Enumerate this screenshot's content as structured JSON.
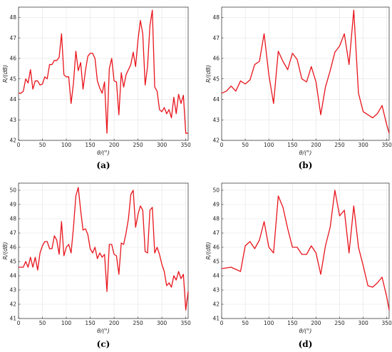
{
  "chart_data": [
    {
      "type": "line",
      "panel_label": "(a)",
      "xlabel": "θ/(°)",
      "ylabel": "R/(dB)",
      "xlim": [
        0,
        355
      ],
      "ylim": [
        42,
        48.5
      ],
      "xticks": [
        0,
        50,
        100,
        150,
        200,
        250,
        300,
        350
      ],
      "yticks": [
        42,
        43,
        44,
        45,
        46,
        47,
        48
      ],
      "grid": true,
      "color": "#e8141b",
      "x": [
        0,
        5,
        10,
        15,
        20,
        25,
        30,
        35,
        40,
        45,
        50,
        55,
        60,
        65,
        70,
        75,
        80,
        85,
        90,
        95,
        100,
        105,
        110,
        115,
        120,
        125,
        130,
        135,
        140,
        145,
        150,
        155,
        160,
        165,
        170,
        175,
        180,
        185,
        190,
        195,
        200,
        205,
        210,
        215,
        220,
        225,
        230,
        235,
        240,
        245,
        250,
        255,
        260,
        265,
        270,
        275,
        280,
        285,
        290,
        295,
        300,
        305,
        310,
        315,
        320,
        325,
        330,
        335,
        340,
        345,
        350,
        355
      ],
      "y": [
        44.3,
        44.3,
        44.4,
        45.0,
        44.8,
        45.45,
        44.5,
        44.9,
        44.9,
        44.7,
        44.75,
        45.1,
        45.0,
        45.7,
        45.7,
        45.9,
        45.9,
        46.05,
        47.2,
        45.2,
        45.1,
        45.1,
        43.8,
        44.8,
        46.35,
        45.4,
        45.8,
        44.5,
        45.4,
        46.1,
        46.25,
        46.25,
        46.0,
        44.9,
        44.55,
        44.3,
        44.85,
        42.35,
        45.5,
        46.0,
        44.9,
        44.85,
        43.25,
        45.3,
        44.6,
        45.2,
        45.45,
        45.7,
        46.3,
        45.6,
        46.9,
        47.85,
        47.2,
        44.7,
        45.6,
        47.6,
        48.35,
        44.6,
        44.4,
        43.5,
        43.4,
        43.6,
        43.3,
        43.5,
        43.1,
        44.1,
        43.3,
        44.25,
        43.8,
        44.2,
        42.35,
        42.35
      ]
    },
    {
      "type": "line",
      "panel_label": "(b)",
      "xlabel": "θ/(°)",
      "ylabel": "R/(dB)",
      "xlim": [
        0,
        355
      ],
      "ylim": [
        42,
        48.5
      ],
      "xticks": [
        0,
        50,
        100,
        150,
        200,
        250,
        300,
        350
      ],
      "yticks": [
        42,
        43,
        44,
        45,
        46,
        47,
        48
      ],
      "grid": true,
      "color": "#e8141b",
      "x": [
        0,
        10,
        20,
        30,
        40,
        50,
        60,
        70,
        80,
        90,
        100,
        110,
        120,
        130,
        140,
        150,
        160,
        170,
        180,
        190,
        200,
        210,
        220,
        230,
        240,
        250,
        260,
        270,
        280,
        290,
        300,
        310,
        320,
        330,
        340,
        350,
        355
      ],
      "y": [
        44.3,
        44.4,
        44.65,
        44.4,
        44.9,
        44.75,
        44.95,
        45.7,
        45.85,
        47.2,
        45.2,
        43.8,
        46.35,
        45.85,
        45.45,
        46.25,
        45.95,
        45.0,
        44.85,
        45.6,
        44.85,
        43.25,
        44.6,
        45.4,
        46.3,
        46.6,
        47.2,
        45.7,
        48.35,
        44.3,
        43.4,
        43.25,
        43.1,
        43.3,
        43.7,
        42.75,
        42.35
      ]
    },
    {
      "type": "line",
      "panel_label": "(c)",
      "xlabel": "θ/(°)",
      "ylabel": "R/(dB)",
      "xlim": [
        0,
        355
      ],
      "ylim": [
        41,
        50.5
      ],
      "xticks": [
        0,
        50,
        100,
        150,
        200,
        250,
        300,
        350
      ],
      "yticks": [
        41,
        42,
        43,
        44,
        45,
        46,
        47,
        48,
        49,
        50
      ],
      "grid": true,
      "color": "#e8141b",
      "x": [
        0,
        5,
        10,
        15,
        20,
        25,
        30,
        35,
        40,
        45,
        50,
        55,
        60,
        65,
        70,
        75,
        80,
        85,
        90,
        95,
        100,
        105,
        110,
        115,
        120,
        125,
        130,
        135,
        140,
        145,
        150,
        155,
        160,
        165,
        170,
        175,
        180,
        185,
        190,
        195,
        200,
        205,
        210,
        215,
        220,
        225,
        230,
        235,
        240,
        245,
        250,
        255,
        260,
        265,
        270,
        275,
        280,
        285,
        290,
        295,
        300,
        305,
        310,
        315,
        320,
        325,
        330,
        335,
        340,
        345,
        350,
        355
      ],
      "y": [
        44.6,
        44.6,
        44.6,
        45.0,
        44.6,
        45.3,
        44.6,
        45.3,
        44.4,
        45.6,
        46.1,
        46.4,
        46.4,
        45.9,
        45.9,
        46.8,
        46.5,
        45.5,
        47.8,
        45.4,
        46.0,
        46.2,
        45.6,
        47.4,
        49.6,
        50.2,
        48.6,
        47.2,
        47.3,
        46.9,
        45.9,
        45.6,
        46.0,
        45.2,
        45.6,
        45.3,
        45.5,
        42.9,
        46.2,
        46.2,
        45.5,
        45.4,
        44.1,
        46.3,
        46.2,
        47.0,
        48.0,
        49.7,
        50.0,
        47.4,
        48.3,
        48.9,
        48.6,
        45.7,
        45.6,
        48.6,
        48.8,
        45.6,
        46.0,
        45.5,
        44.8,
        44.3,
        43.3,
        43.5,
        43.2,
        44.0,
        43.7,
        44.3,
        43.8,
        44.1,
        41.6,
        42.9
      ]
    },
    {
      "type": "line",
      "panel_label": "(d)",
      "xlabel": "θ/(°)",
      "ylabel": "R/(dB)",
      "xlim": [
        0,
        355
      ],
      "ylim": [
        41,
        50.5
      ],
      "xticks": [
        0,
        50,
        100,
        150,
        200,
        250,
        300,
        350
      ],
      "yticks": [
        41,
        42,
        43,
        44,
        45,
        46,
        47,
        48,
        49,
        50
      ],
      "grid": true,
      "color": "#e8141b",
      "x": [
        0,
        20,
        40,
        50,
        60,
        70,
        80,
        90,
        100,
        110,
        120,
        130,
        140,
        150,
        160,
        170,
        180,
        190,
        200,
        210,
        220,
        230,
        240,
        250,
        260,
        270,
        280,
        290,
        300,
        310,
        320,
        330,
        340,
        350,
        355
      ],
      "y": [
        44.5,
        44.6,
        44.3,
        46.1,
        46.4,
        45.9,
        46.5,
        47.8,
        46.0,
        45.6,
        49.6,
        48.8,
        47.3,
        46.0,
        46.0,
        45.5,
        45.5,
        46.1,
        45.6,
        44.1,
        46.1,
        47.4,
        50.0,
        48.2,
        48.6,
        45.6,
        48.9,
        46.0,
        44.7,
        43.3,
        43.2,
        43.5,
        43.9,
        42.5,
        41.6
      ]
    }
  ]
}
